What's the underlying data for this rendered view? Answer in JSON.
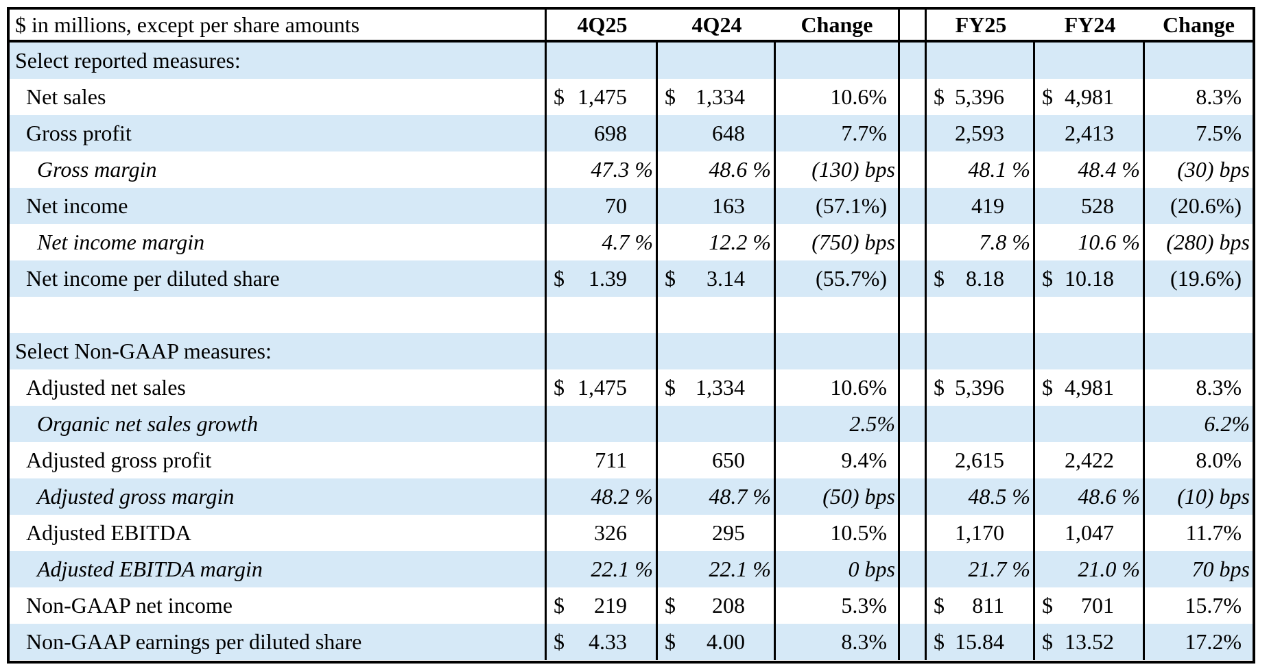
{
  "chart_data": {
    "type": "table",
    "unit_note": "$ in millions, except per share amounts",
    "columns": [
      "4Q25",
      "4Q24",
      "Change",
      "FY25",
      "FY24",
      "Change"
    ],
    "column_groups": [
      "quarter",
      "quarter",
      "quarter",
      "full-year",
      "full-year",
      "full-year"
    ],
    "rows": [
      {
        "label": "Select reported measures:",
        "style": "section",
        "q25": "",
        "q24": "",
        "qchg": "",
        "fy25": "",
        "fy24": "",
        "fychg": ""
      },
      {
        "label": "Net sales",
        "style": "item",
        "dollar": true,
        "q25": "1,475",
        "q24": "1,334",
        "qchg": "10.6%",
        "fy25": "5,396",
        "fy24": "4,981",
        "fychg": "8.3%"
      },
      {
        "label": "Gross profit",
        "style": "item",
        "q25": "698",
        "q24": "648",
        "qchg": "7.7%",
        "fy25": "2,593",
        "fy24": "2,413",
        "fychg": "7.5%"
      },
      {
        "label": "Gross margin",
        "style": "margin",
        "q25": "47.3 %",
        "q24": "48.6 %",
        "qchg": "(130) bps",
        "fy25": "48.1 %",
        "fy24": "48.4 %",
        "fychg": "(30) bps"
      },
      {
        "label": "Net income",
        "style": "item",
        "q25": "70",
        "q24": "163",
        "qchg": "(57.1%)",
        "fy25": "419",
        "fy24": "528",
        "fychg": "(20.6%)"
      },
      {
        "label": "Net income margin",
        "style": "margin",
        "q25": "4.7 %",
        "q24": "12.2 %",
        "qchg": "(750) bps",
        "fy25": "7.8 %",
        "fy24": "10.6 %",
        "fychg": "(280) bps"
      },
      {
        "label": "Net income per diluted share",
        "style": "item",
        "dollar": true,
        "q25": "1.39",
        "q24": "3.14",
        "qchg": "(55.7%)",
        "fy25": "8.18",
        "fy24": "10.18",
        "fychg": "(19.6%)"
      },
      {
        "label": "",
        "style": "blank",
        "q25": "",
        "q24": "",
        "qchg": "",
        "fy25": "",
        "fy24": "",
        "fychg": ""
      },
      {
        "label": "Select Non-GAAP measures:",
        "style": "section",
        "q25": "",
        "q24": "",
        "qchg": "",
        "fy25": "",
        "fy24": "",
        "fychg": ""
      },
      {
        "label": "Adjusted net sales",
        "style": "item",
        "dollar": true,
        "q25": "1,475",
        "q24": "1,334",
        "qchg": "10.6%",
        "fy25": "5,396",
        "fy24": "4,981",
        "fychg": "8.3%"
      },
      {
        "label": "Organic net sales growth",
        "style": "margin",
        "q25": "",
        "q24": "",
        "qchg": "2.5%",
        "fy25": "",
        "fy24": "",
        "fychg": "6.2%"
      },
      {
        "label": "Adjusted gross profit",
        "style": "item",
        "q25": "711",
        "q24": "650",
        "qchg": "9.4%",
        "fy25": "2,615",
        "fy24": "2,422",
        "fychg": "8.0%"
      },
      {
        "label": "Adjusted gross margin",
        "style": "margin",
        "q25": "48.2 %",
        "q24": "48.7 %",
        "qchg": "(50) bps",
        "fy25": "48.5 %",
        "fy24": "48.6 %",
        "fychg": "(10) bps"
      },
      {
        "label": "Adjusted EBITDA",
        "style": "item",
        "q25": "326",
        "q24": "295",
        "qchg": "10.5%",
        "fy25": "1,170",
        "fy24": "1,047",
        "fychg": "11.7%"
      },
      {
        "label": "Adjusted EBITDA margin",
        "style": "margin",
        "q25": "22.1 %",
        "q24": "22.1 %",
        "qchg": "0 bps",
        "fy25": "21.7 %",
        "fy24": "21.0 %",
        "fychg": "70 bps"
      },
      {
        "label": "Non-GAAP net income",
        "style": "item",
        "dollar": true,
        "q25": "219",
        "q24": "208",
        "qchg": "5.3%",
        "fy25": "811",
        "fy24": "701",
        "fychg": "15.7%"
      },
      {
        "label": "Non-GAAP earnings per diluted share",
        "style": "item",
        "dollar": true,
        "q25": "4.33",
        "q24": "4.00",
        "qchg": "8.3%",
        "fy25": "15.84",
        "fy24": "13.52",
        "fychg": "17.2%"
      }
    ],
    "layout": {
      "stripe_color": "#D6E9F7",
      "border_color": "#000000",
      "text_color": "#000000",
      "striping": "even rows blue starting with first data row",
      "legend_position": "none",
      "grid": "partial vertical rules, header underline, outer frame"
    }
  }
}
